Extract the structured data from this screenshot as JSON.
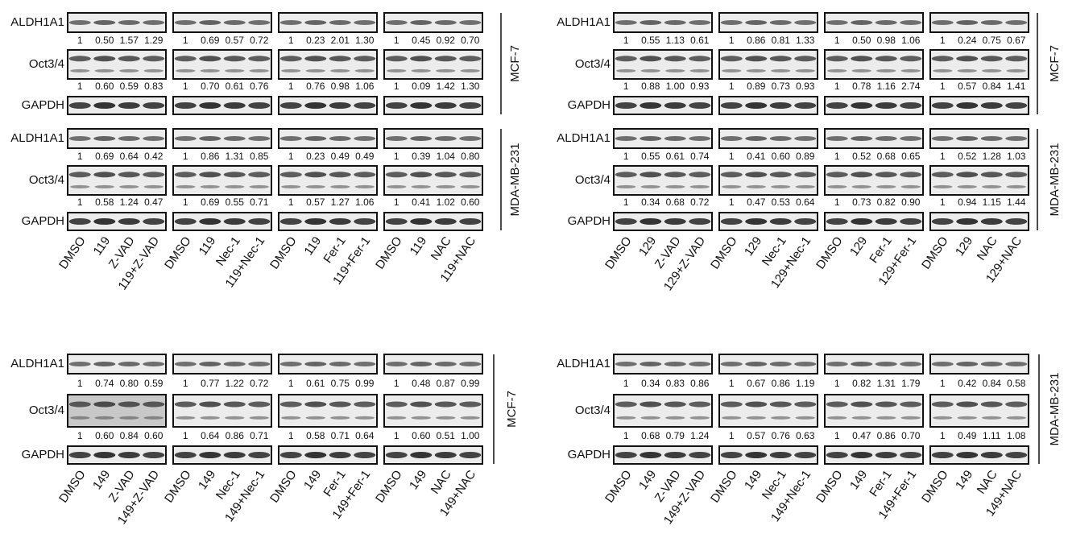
{
  "panels": [
    {
      "blocks": [
        {
          "cell_line": "MCF-7",
          "rows": [
            {
              "label": "ALDH1A1",
              "values": [
                [
                  "1",
                  "0.50",
                  "1.57",
                  "1.29"
                ],
                [
                  "1",
                  "0.69",
                  "0.57",
                  "0.72"
                ],
                [
                  "1",
                  "0.23",
                  "2.01",
                  "1.30"
                ],
                [
                  "1",
                  "0.45",
                  "0.92",
                  "0.70"
                ]
              ]
            },
            {
              "label": "Oct3/4",
              "values": [
                [
                  "1",
                  "0.60",
                  "0.59",
                  "0.83"
                ],
                [
                  "1",
                  "0.70",
                  "0.61",
                  "0.76"
                ],
                [
                  "1",
                  "0.76",
                  "0.98",
                  "1.06"
                ],
                [
                  "1",
                  "0.09",
                  "1.42",
                  "1.30"
                ]
              ]
            },
            {
              "label": "GAPDH"
            }
          ]
        },
        {
          "cell_line": "MDA-MB-231",
          "rows": [
            {
              "label": "ALDH1A1",
              "values": [
                [
                  "1",
                  "0.69",
                  "0.64",
                  "0.42"
                ],
                [
                  "1",
                  "0.86",
                  "1.31",
                  "0.85"
                ],
                [
                  "1",
                  "0.23",
                  "0.49",
                  "0.49"
                ],
                [
                  "1",
                  "0.39",
                  "1.04",
                  "0.80"
                ]
              ]
            },
            {
              "label": "Oct3/4",
              "values": [
                [
                  "1",
                  "0.58",
                  "1.24",
                  "0.47"
                ],
                [
                  "1",
                  "0.69",
                  "0.55",
                  "0.71"
                ],
                [
                  "1",
                  "0.57",
                  "1.27",
                  "1.06"
                ],
                [
                  "1",
                  "0.41",
                  "1.02",
                  "0.60"
                ]
              ]
            },
            {
              "label": "GAPDH"
            }
          ]
        }
      ],
      "lanes": [
        [
          "DMSO",
          "119",
          "Z-VAD",
          "119+Z-VAD"
        ],
        [
          "DMSO",
          "119",
          "Nec-1",
          "119+Nec-1"
        ],
        [
          "DMSO",
          "119",
          "Fer-1",
          "119+Fer-1"
        ],
        [
          "DMSO",
          "119",
          "NAC",
          "119+NAC"
        ]
      ]
    },
    {
      "blocks": [
        {
          "cell_line": "MCF-7",
          "rows": [
            {
              "label": "ALDH1A1",
              "values": [
                [
                  "1",
                  "0.55",
                  "1.13",
                  "0.61"
                ],
                [
                  "1",
                  "0.86",
                  "0.81",
                  "1.33"
                ],
                [
                  "1",
                  "0.50",
                  "0.98",
                  "1.06"
                ],
                [
                  "1",
                  "0.24",
                  "0.75",
                  "0.67"
                ]
              ]
            },
            {
              "label": "Oct3/4",
              "values": [
                [
                  "1",
                  "0.88",
                  "1.00",
                  "0.93"
                ],
                [
                  "1",
                  "0.89",
                  "0.73",
                  "0.93"
                ],
                [
                  "1",
                  "0.78",
                  "1.16",
                  "2.74"
                ],
                [
                  "1",
                  "0.57",
                  "0.84",
                  "1.41"
                ]
              ]
            },
            {
              "label": "GAPDH"
            }
          ]
        },
        {
          "cell_line": "MDA-MB-231",
          "rows": [
            {
              "label": "ALDH1A1",
              "values": [
                [
                  "1",
                  "0.55",
                  "0.61",
                  "0.74"
                ],
                [
                  "1",
                  "0.41",
                  "0.60",
                  "0.89"
                ],
                [
                  "1",
                  "0.52",
                  "0.68",
                  "0.65"
                ],
                [
                  "1",
                  "0.52",
                  "1.28",
                  "1.03"
                ]
              ]
            },
            {
              "label": "Oct3/4",
              "values": [
                [
                  "1",
                  "0.34",
                  "0.68",
                  "0.72"
                ],
                [
                  "1",
                  "0.47",
                  "0.53",
                  "0.64"
                ],
                [
                  "1",
                  "0.73",
                  "0.82",
                  "0.90"
                ],
                [
                  "1",
                  "0.94",
                  "1.15",
                  "1.44"
                ]
              ]
            },
            {
              "label": "GAPDH"
            }
          ]
        }
      ],
      "lanes": [
        [
          "DMSO",
          "129",
          "Z-VAD",
          "129+Z-VAD"
        ],
        [
          "DMSO",
          "129",
          "Nec-1",
          "129+Nec-1"
        ],
        [
          "DMSO",
          "129",
          "Fer-1",
          "129+Fer-1"
        ],
        [
          "DMSO",
          "129",
          "NAC",
          "129+NAC"
        ]
      ]
    },
    {
      "blocks": [
        {
          "cell_line": "MCF-7",
          "rows": [
            {
              "label": "ALDH1A1",
              "values": [
                [
                  "1",
                  "0.74",
                  "0.80",
                  "0.59"
                ],
                [
                  "1",
                  "0.77",
                  "1.22",
                  "0.72"
                ],
                [
                  "1",
                  "0.61",
                  "0.75",
                  "0.99"
                ],
                [
                  "1",
                  "0.48",
                  "0.87",
                  "0.99"
                ]
              ]
            },
            {
              "label": "Oct3/4",
              "values": [
                [
                  "1",
                  "0.60",
                  "0.84",
                  "0.60"
                ],
                [
                  "1",
                  "0.64",
                  "0.86",
                  "0.71"
                ],
                [
                  "1",
                  "0.58",
                  "0.71",
                  "0.64"
                ],
                [
                  "1",
                  "0.60",
                  "0.51",
                  "1.00"
                ]
              ]
            },
            {
              "label": "GAPDH"
            }
          ]
        }
      ],
      "lanes": [
        [
          "DMSO",
          "149",
          "Z-VAD",
          "149+Z-VAD"
        ],
        [
          "DMSO",
          "149",
          "Nec-1",
          "149+Nec-1"
        ],
        [
          "DMSO",
          "149",
          "Fer-1",
          "149+Fer-1"
        ],
        [
          "DMSO",
          "149",
          "NAC",
          "149+NAC"
        ]
      ]
    },
    {
      "blocks": [
        {
          "cell_line": "MDA-MB-231",
          "rows": [
            {
              "label": "ALDH1A1",
              "values": [
                [
                  "1",
                  "0.34",
                  "0.83",
                  "0.86"
                ],
                [
                  "1",
                  "0.67",
                  "0.86",
                  "1.19"
                ],
                [
                  "1",
                  "0.82",
                  "1.31",
                  "1.79"
                ],
                [
                  "1",
                  "0.42",
                  "0.84",
                  "0.58"
                ]
              ]
            },
            {
              "label": "Oct3/4",
              "values": [
                [
                  "1",
                  "0.68",
                  "0.79",
                  "1.24"
                ],
                [
                  "1",
                  "0.57",
                  "0.76",
                  "0.63"
                ],
                [
                  "1",
                  "0.47",
                  "0.86",
                  "0.70"
                ],
                [
                  "1",
                  "0.49",
                  "1.11",
                  "1.08"
                ]
              ]
            },
            {
              "label": "GAPDH"
            }
          ]
        }
      ],
      "lanes": [
        [
          "DMSO",
          "149",
          "Z-VAD",
          "149+Z-VAD"
        ],
        [
          "DMSO",
          "149",
          "Nec-1",
          "149+Nec-1"
        ],
        [
          "DMSO",
          "149",
          "Fer-1",
          "149+Fer-1"
        ],
        [
          "DMSO",
          "149",
          "NAC",
          "149+NAC"
        ]
      ]
    }
  ]
}
